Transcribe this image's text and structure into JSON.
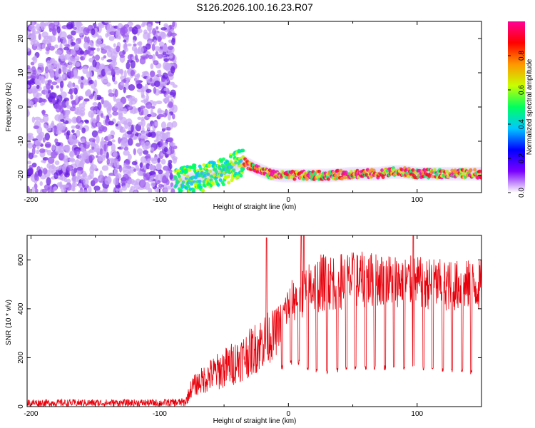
{
  "title": "S126.2026.100.16.23.R07",
  "chart_data": [
    {
      "type": "heatmap",
      "xlabel": "Height of straight line (km)",
      "ylabel": "Frequency (Hz)",
      "xlim": [
        -203,
        150
      ],
      "ylim": [
        -25,
        25
      ],
      "xticks": [
        -200,
        -100,
        0,
        100
      ],
      "yticks": [
        -20,
        -10,
        0,
        10,
        20
      ],
      "colorbar": {
        "label": "Normalized spectral amplitude",
        "range": [
          0,
          1
        ],
        "ticks": [
          0.0,
          0.2,
          0.4,
          0.6,
          0.8
        ],
        "colormap": [
          "#ffffff",
          "#7a00ff",
          "#0000ff",
          "#00c8ff",
          "#00ff60",
          "#c8ff00",
          "#ff9600",
          "#ff0000",
          "#ff0096"
        ]
      },
      "tone_line": {
        "description_points_x": [
          -88,
          -75,
          -60,
          -45,
          -35,
          -25,
          -15,
          -5,
          0,
          10,
          30,
          50,
          70,
          80,
          90,
          100,
          120,
          150
        ],
        "frequency": [
          -22,
          -21,
          -20,
          -18,
          -16,
          -18,
          -19.5,
          -20,
          -20,
          -20,
          -20,
          -19.5,
          -19.5,
          -19,
          -19,
          -19.5,
          -19.5,
          -19.5
        ]
      },
      "noise_region_x": [
        -203,
        -88
      ]
    },
    {
      "type": "line",
      "xlabel": "Height of straight line (km)",
      "ylabel": "SNR (10 * v/v)",
      "xlim": [
        -203,
        150
      ],
      "ylim": [
        0,
        700
      ],
      "xticks": [
        -200,
        -100,
        0,
        100
      ],
      "yticks": [
        0,
        200,
        400,
        600
      ],
      "color": "#e8000b",
      "envelope": {
        "x": [
          -203,
          -150,
          -100,
          -80,
          -75,
          -60,
          -45,
          -30,
          -20,
          -10,
          -5,
          0,
          10,
          20,
          30,
          50,
          75,
          100,
          125,
          150
        ],
        "base": [
          0,
          0,
          0,
          0,
          40,
          60,
          80,
          120,
          150,
          200,
          280,
          330,
          360,
          380,
          390,
          400,
          410,
          400,
          390,
          390
        ],
        "top": [
          30,
          30,
          30,
          35,
          120,
          200,
          260,
          320,
          380,
          400,
          440,
          500,
          570,
          620,
          630,
          635,
          630,
          615,
          600,
          600
        ],
        "comment": "approximate lower/upper extent of noisy trace"
      },
      "dropouts": {
        "x": [
          -5,
          2,
          8,
          15,
          22,
          30,
          38,
          45,
          52,
          60,
          67,
          75,
          82,
          90,
          97,
          105,
          112,
          120,
          127,
          135,
          142
        ],
        "min": [
          150,
          170,
          170,
          140,
          135,
          135,
          140,
          145,
          150,
          150,
          150,
          150,
          150,
          150,
          150,
          145,
          145,
          140,
          140,
          140,
          130
        ]
      },
      "spikes": [
        {
          "x": -17,
          "y": 690
        },
        {
          "x": 10,
          "y": 700
        },
        {
          "x": 12,
          "y": 700
        },
        {
          "x": 97,
          "y": 700
        }
      ]
    }
  ]
}
